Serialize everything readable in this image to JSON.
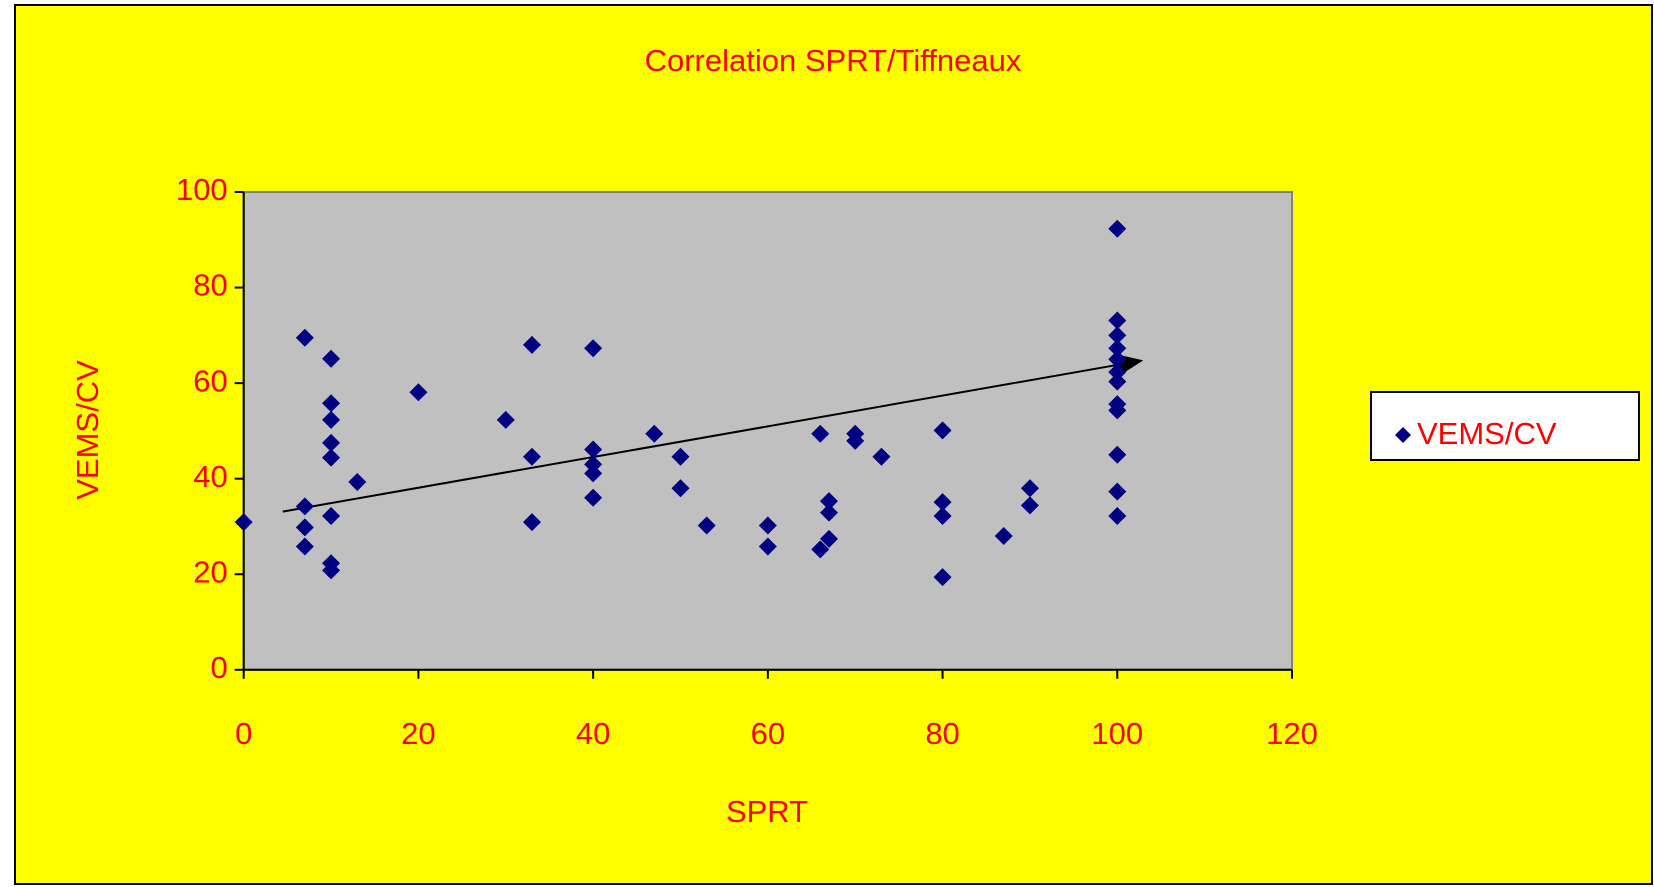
{
  "chart_data": {
    "type": "scatter",
    "title": "Correlation SPRT/Tiffneaux",
    "x_label": "SPRT",
    "y_label": "VEMS/CV",
    "xlim": [
      0,
      120
    ],
    "xticks": [
      0,
      20,
      40,
      60,
      80,
      100,
      120
    ],
    "ylim": [
      0,
      100
    ],
    "yticks": [
      0,
      20,
      40,
      60,
      80,
      100
    ],
    "grid": false,
    "legend": "right",
    "series": [
      {
        "name": "VEMS/CV",
        "color": "#000080",
        "x": [
          0,
          7,
          7,
          7,
          7,
          10,
          10,
          10,
          10,
          10,
          10,
          10,
          10,
          13,
          20,
          30,
          33,
          33,
          33,
          40,
          40,
          40,
          40,
          40,
          47,
          50,
          50,
          53,
          60,
          60,
          66,
          66,
          67,
          67,
          67,
          70,
          70,
          73,
          80,
          80,
          80,
          80,
          87,
          90,
          90,
          100,
          100,
          100,
          100,
          100,
          100,
          100,
          100,
          100,
          100,
          100,
          100
        ],
        "values": [
          30.9,
          69.5,
          34.2,
          29.8,
          25.8,
          65.1,
          55.8,
          52.3,
          47.5,
          44.4,
          32.2,
          22.3,
          20.8,
          39.3,
          58.1,
          52.3,
          68,
          44.6,
          30.9,
          67.3,
          46.1,
          43,
          41.1,
          36,
          49.4,
          44.6,
          38,
          30.2,
          30.2,
          25.8,
          49.4,
          25.2,
          35.3,
          32.9,
          27.4,
          49.4,
          47.9,
          44.6,
          50.1,
          35.1,
          32.2,
          19.4,
          28,
          38,
          34.4,
          92.3,
          73.1,
          70,
          67.3,
          65,
          62.3,
          60.3,
          55.6,
          54.3,
          45,
          37.3,
          32.2
        ]
      }
    ]
  }
}
